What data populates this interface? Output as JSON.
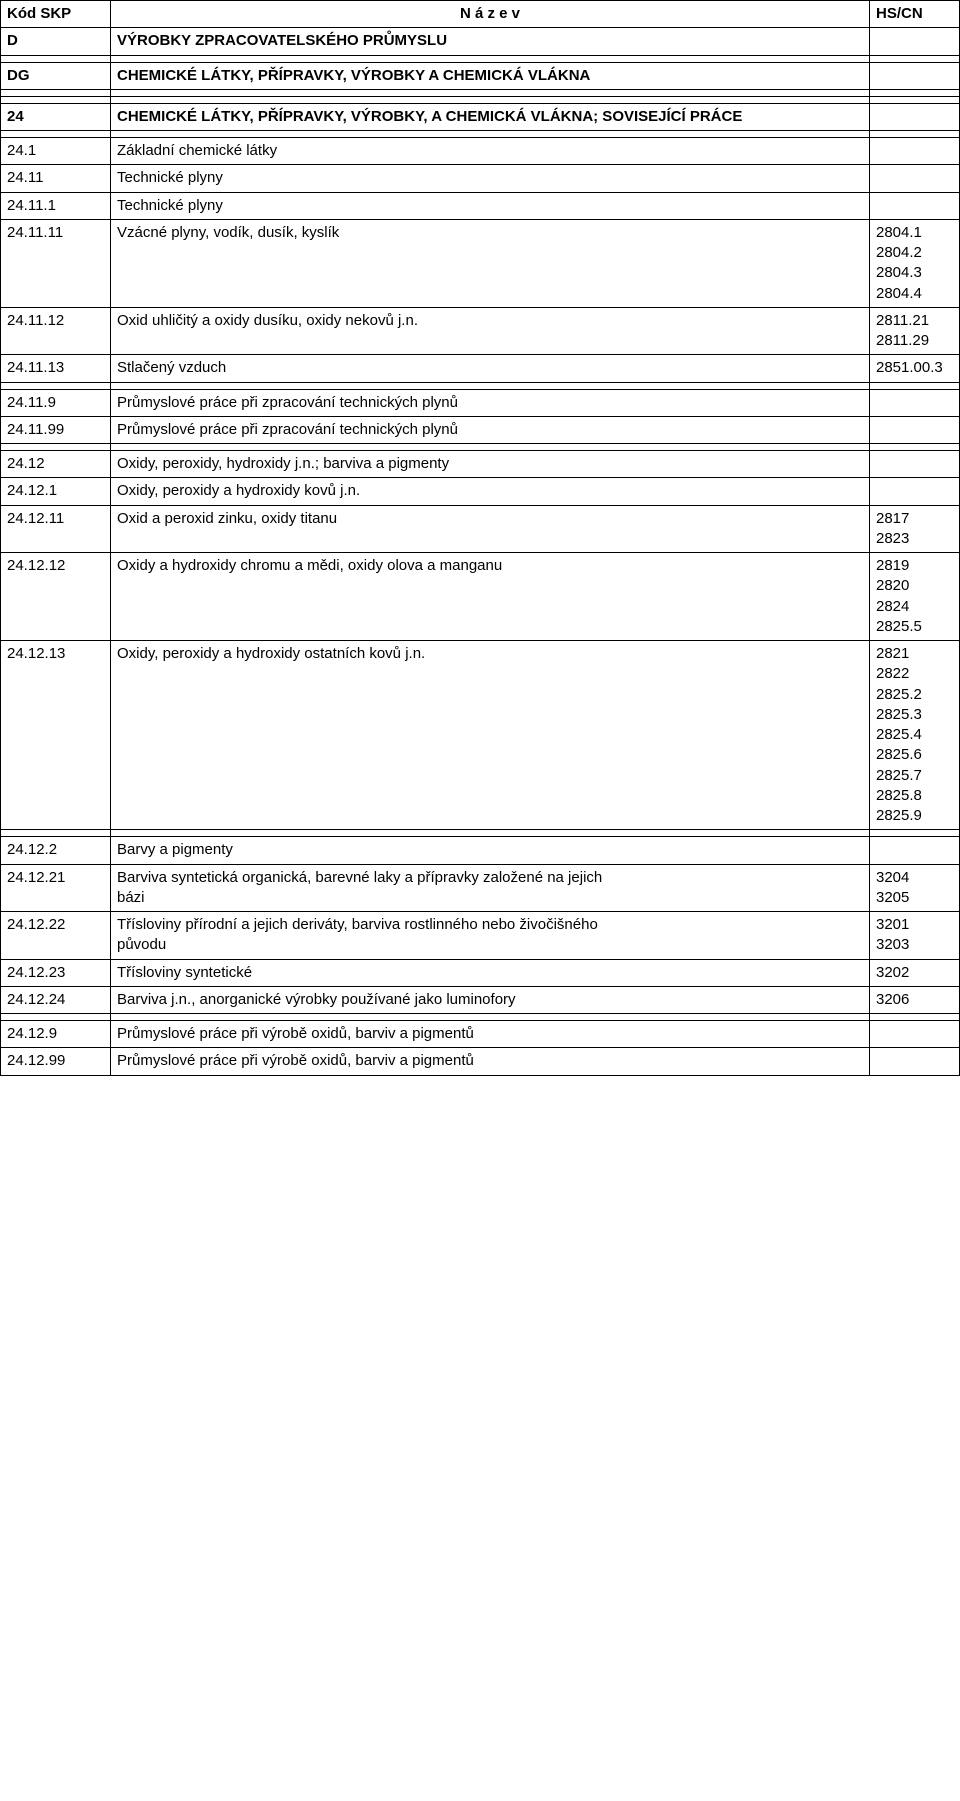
{
  "header": {
    "col1": "Kód SKP",
    "col2": "N á z e v",
    "col3": "HS/CN"
  },
  "rows": [
    {
      "c1": "D",
      "c2": "VÝROBKY ZPRACOVATELSKÉHO PRŮMYSLU",
      "c3": "",
      "bold": true
    },
    {
      "c1": "",
      "c2": "",
      "c3": ""
    },
    {
      "c1": "DG",
      "c2": "CHEMICKÉ LÁTKY, PŘÍPRAVKY, VÝROBKY A CHEMICKÁ VLÁKNA",
      "c3": "",
      "bold": true
    },
    {
      "c1": "",
      "c2": "",
      "c3": ""
    },
    {
      "c1": "",
      "c2": "",
      "c3": ""
    },
    {
      "c1": "24",
      "c2": "CHEMICKÉ LÁTKY, PŘÍPRAVKY, VÝROBKY, A CHEMICKÁ VLÁKNA; SOVISEJÍCÍ PRÁCE",
      "c3": "",
      "bold": true
    },
    {
      "c1": "",
      "c2": "",
      "c3": ""
    },
    {
      "c1": "24.1",
      "c2": "Základní chemické látky",
      "c3": ""
    },
    {
      "c1": "24.11",
      "c2": "Technické plyny",
      "c3": ""
    },
    {
      "c1": "24.11.1",
      "c2": "Technické plyny",
      "c3": ""
    },
    {
      "c1": "24.11.11",
      "c2": "Vzácné plyny, vodík, dusík, kyslík",
      "c3": "2804.1\n2804.2\n2804.3\n2804.4"
    },
    {
      "c1": "24.11.12",
      "c2": "Oxid uhličitý a oxidy dusíku, oxidy nekovů j.n.",
      "c3": "2811.21\n2811.29"
    },
    {
      "c1": "24.11.13",
      "c2": "Stlačený vzduch",
      "c3": "2851.00.3"
    },
    {
      "c1": "",
      "c2": "",
      "c3": ""
    },
    {
      "c1": "24.11.9",
      "c2": "Průmyslové práce při zpracování technických plynů",
      "c3": ""
    },
    {
      "c1": "24.11.99",
      "c2": "Průmyslové práce při zpracování technických plynů",
      "c3": ""
    },
    {
      "c1": "",
      "c2": "",
      "c3": ""
    },
    {
      "c1": "24.12",
      "c2": "Oxidy, peroxidy, hydroxidy j.n.; barviva a pigmenty",
      "c3": ""
    },
    {
      "c1": "24.12.1",
      "c2": "Oxidy, peroxidy a hydroxidy kovů j.n.",
      "c3": ""
    },
    {
      "c1": "24.12.11",
      "c2": "Oxid a peroxid zinku, oxidy titanu",
      "c3": "2817\n2823"
    },
    {
      "c1": "24.12.12",
      "c2": "Oxidy a hydroxidy chromu a mědi, oxidy olova a manganu",
      "c3": "2819\n2820\n2824\n2825.5"
    },
    {
      "c1": "24.12.13",
      "c2": "Oxidy, peroxidy a hydroxidy ostatních kovů j.n.",
      "c3": "2821\n2822\n2825.2\n2825.3\n2825.4\n2825.6\n2825.7\n2825.8\n2825.9"
    },
    {
      "c1": "",
      "c2": "",
      "c3": ""
    },
    {
      "c1": "24.12.2",
      "c2": "Barvy a pigmenty",
      "c3": ""
    },
    {
      "c1": "24.12.21",
      "c2": "Barviva syntetická organická, barevné laky a přípravky založené na jejich\nbázi",
      "c3": "3204\n3205"
    },
    {
      "c1": "24.12.22",
      "c2": "Třísloviny přírodní a jejich deriváty, barviva rostlinného nebo živočišného\npůvodu",
      "c3": "3201\n3203"
    },
    {
      "c1": "24.12.23",
      "c2": "Třísloviny syntetické",
      "c3": "3202"
    },
    {
      "c1": "24.12.24",
      "c2": "Barviva j.n., anorganické výrobky používané jako luminofory",
      "c3": "3206"
    },
    {
      "c1": "",
      "c2": "",
      "c3": ""
    },
    {
      "c1": "24.12.9",
      "c2": "Průmyslové práce při výrobě oxidů, barviv a pigmentů",
      "c3": ""
    },
    {
      "c1": "24.12.99",
      "c2": "Průmyslové práce při výrobě oxidů, barviv a pigmentů",
      "c3": ""
    }
  ]
}
